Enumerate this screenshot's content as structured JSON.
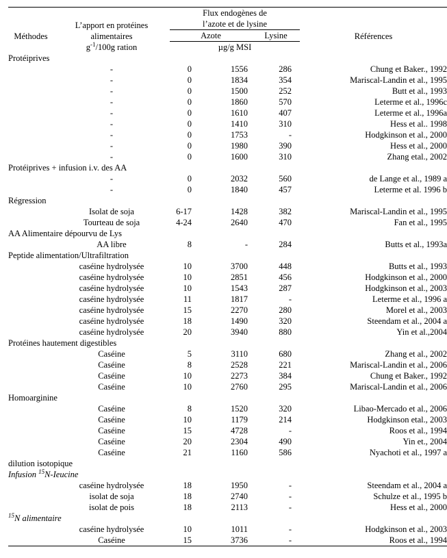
{
  "header": {
    "methodes": "Méthodes",
    "apport": "L’apport en protéines alimentaires",
    "flux": "Flux endogènes de\nl’azote et de lysine",
    "flux_line1": "Flux endogènes de",
    "flux_line2": "l’azote et de lysine",
    "azote": "Azote",
    "lysine": "Lysine",
    "references": "Références"
  },
  "units": {
    "apport_html_prefix": "g",
    "apport_html_sup": "-1",
    "apport_html_suffix": "/100g ration",
    "flux": "µg/g MSI"
  },
  "sections": [
    {
      "label": "Protéiprives",
      "italic": false,
      "rows": [
        {
          "apport": "-",
          "azote": "0",
          "nitrogen": "1556",
          "lysine": "286",
          "ref": "Chung et Baker., 1992"
        },
        {
          "apport": "-",
          "azote": "0",
          "nitrogen": "1834",
          "lysine": "354",
          "ref": "Mariscal-Landin et al., 1995"
        },
        {
          "apport": "-",
          "azote": "0",
          "nitrogen": "1500",
          "lysine": "252",
          "ref": "Butt et al., 1993"
        },
        {
          "apport": "-",
          "azote": "0",
          "nitrogen": "1860",
          "lysine": "570",
          "ref": "Leterme et al., 1996c"
        },
        {
          "apport": "-",
          "azote": "0",
          "nitrogen": "1610",
          "lysine": "407",
          "ref": "Leterme et al., 1996a"
        },
        {
          "apport": "-",
          "azote": "0",
          "nitrogen": "1410",
          "lysine": "310",
          "ref": "Hess et al.. 1998"
        },
        {
          "apport": "-",
          "azote": "0",
          "nitrogen": "1753",
          "lysine": "-",
          "ref": "Hodgkinson et al., 2000"
        },
        {
          "apport": "-",
          "azote": "0",
          "nitrogen": "1980",
          "lysine": "390",
          "ref": "Hess et al., 2000"
        },
        {
          "apport": "-",
          "azote": "0",
          "nitrogen": "1600",
          "lysine": "310",
          "ref": "Zhang etal., 2002"
        }
      ]
    },
    {
      "label": "Protéiprives + infusion i.v. des AA",
      "italic": false,
      "rows": [
        {
          "apport": "-",
          "azote": "0",
          "nitrogen": "2032",
          "lysine": "560",
          "ref": "de Lange et al., 1989 a"
        },
        {
          "apport": "-",
          "azote": "0",
          "nitrogen": "1840",
          "lysine": "457",
          "ref": "Leterme et al. 1996 b"
        }
      ]
    },
    {
      "label": "Régression",
      "italic": false,
      "rows": [
        {
          "apport": "Isolat de soja",
          "azote": "6-17",
          "nitrogen": "1428",
          "lysine": "382",
          "ref": "Mariscal-Landin et al., 1995"
        },
        {
          "apport": "Tourteau de soja",
          "azote": "4-24",
          "nitrogen": "2640",
          "lysine": "470",
          "ref": "Fan et al., 1995"
        }
      ]
    },
    {
      "label": "AA Alimentaire dépourvu de Lys",
      "italic": false,
      "rows": [
        {
          "apport": "AA libre",
          "azote": "8",
          "nitrogen": "-",
          "lysine": "284",
          "ref": "Butts et al., 1993a"
        }
      ]
    },
    {
      "label": "Peptide alimentation/Ultrafiltration",
      "italic": false,
      "rows": [
        {
          "apport": "caséine hydrolysée",
          "azote": "10",
          "nitrogen": "3700",
          "lysine": "448",
          "ref": "Butts et al., 1993"
        },
        {
          "apport": "caséine hydrolysée",
          "azote": "10",
          "nitrogen": "2851",
          "lysine": "456",
          "ref": "Hodgkinson et al., 2000"
        },
        {
          "apport": "caséine hydrolysée",
          "azote": "10",
          "nitrogen": "1543",
          "lysine": "287",
          "ref": "Hodgkinson et al., 2003"
        },
        {
          "apport": "caséine hydrolysée",
          "azote": "11",
          "nitrogen": "1817",
          "lysine": "-",
          "ref": "Leterme et al., 1996 a"
        },
        {
          "apport": "caséine hydrolysée",
          "azote": "15",
          "nitrogen": "2270",
          "lysine": "280",
          "ref": "Morel et al., 2003"
        },
        {
          "apport": "caséine hydrolysée",
          "azote": "18",
          "nitrogen": "1490",
          "lysine": "320",
          "ref": "Steendam et al., 2004 a"
        },
        {
          "apport": "caséine hydrolysée",
          "azote": "20",
          "nitrogen": "3940",
          "lysine": "880",
          "ref": "Yin et al.,2004"
        }
      ]
    },
    {
      "label": "Protéines hautement digestibles",
      "italic": false,
      "rows": [
        {
          "apport": "Caséine",
          "azote": "5",
          "nitrogen": "3110",
          "lysine": "680",
          "ref": "Zhang et al., 2002"
        },
        {
          "apport": "Caséine",
          "azote": "8",
          "nitrogen": "2528",
          "lysine": "221",
          "ref": "Mariscal-Landin et al., 2006"
        },
        {
          "apport": "Caséine",
          "azote": "10",
          "nitrogen": "2273",
          "lysine": "384",
          "ref": "Chung et Baker., 1992"
        },
        {
          "apport": "Caséine",
          "azote": "10",
          "nitrogen": "2760",
          "lysine": "295",
          "ref": "Mariscal-Landin et al., 2006"
        }
      ]
    },
    {
      "label": "Homoarginine",
      "italic": false,
      "rows": [
        {
          "apport": "Caséine",
          "azote": "8",
          "nitrogen": "1520",
          "lysine": "320",
          "ref": "Libao-Mercado et al., 2006"
        },
        {
          "apport": "Caséine",
          "azote": "10",
          "nitrogen": "1179",
          "lysine": "214",
          "ref": "Hodgkinson etal., 2003"
        },
        {
          "apport": "Caséine",
          "azote": "15",
          "nitrogen": "4728",
          "lysine": "-",
          "ref": "Roos et al., 1994"
        },
        {
          "apport": "Caséine",
          "azote": "20",
          "nitrogen": "2304",
          "lysine": "490",
          "ref": "Yin et., 2004"
        },
        {
          "apport": "Caséine",
          "azote": "21",
          "nitrogen": "1160",
          "lysine": "586",
          "ref": "Nyachoti et al., 1997 a"
        }
      ]
    },
    {
      "label": "dilution isotopique",
      "italic": false,
      "rows": []
    },
    {
      "label": "Infusion 15N-Ieucine",
      "italic": true,
      "rows": [
        {
          "apport": "caséine hydrolysée",
          "azote": "18",
          "nitrogen": "1950",
          "lysine": "-",
          "ref": "Steendam et al., 2004 a"
        },
        {
          "apport": "isolat de soja",
          "azote": "18",
          "nitrogen": "2740",
          "lysine": "-",
          "ref": "Schulze et al., 1995 b"
        },
        {
          "apport": "isolat de pois",
          "azote": "18",
          "nitrogen": "2113",
          "lysine": "-",
          "ref": "Hess et al., 2000"
        }
      ]
    },
    {
      "label": "15N alimentaire",
      "italic": true,
      "rows": [
        {
          "apport": "caséine hydrolysée",
          "azote": "10",
          "nitrogen": "1011",
          "lysine": "-",
          "ref": "Hodgkinson et al., 2003"
        },
        {
          "apport": "Caséine",
          "azote": "15",
          "nitrogen": "3736",
          "lysine": "-",
          "ref": "Roos et al., 1994"
        }
      ]
    }
  ]
}
